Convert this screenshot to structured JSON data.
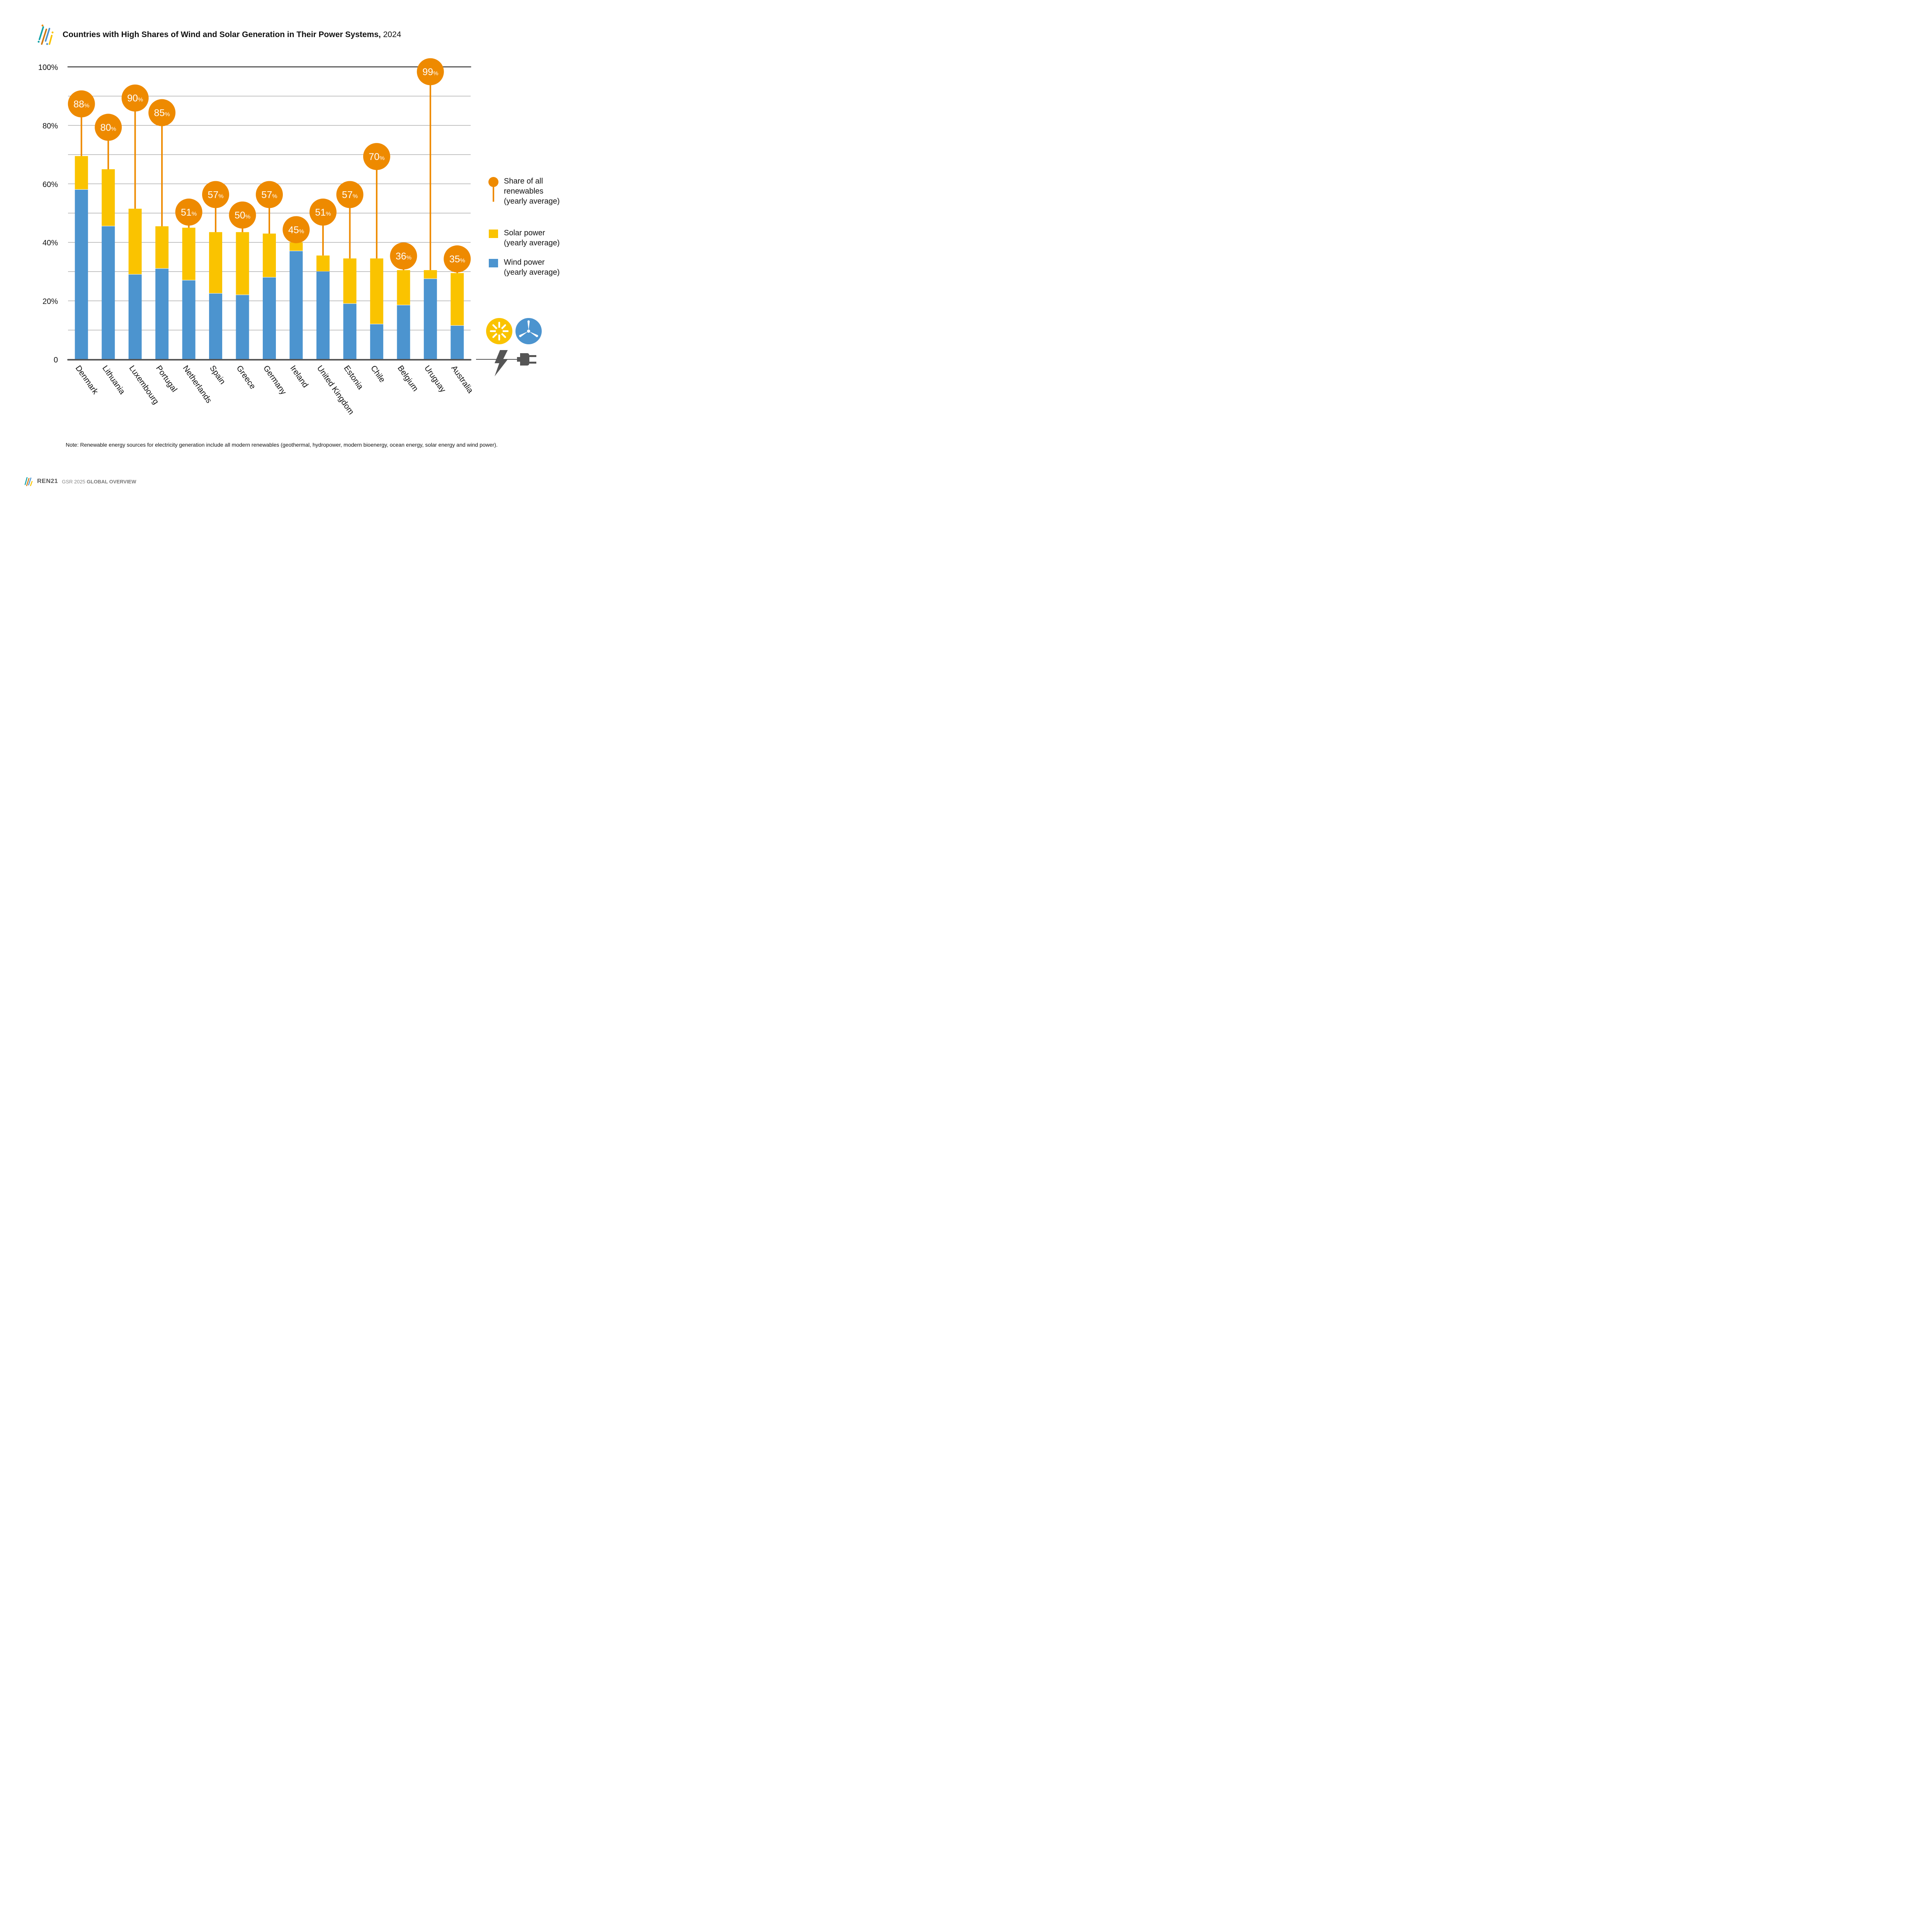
{
  "header": {
    "title": "Countries with High Shares of Wind and Solar Generation in Their Power Systems,",
    "year": "2024",
    "logo_icon": "ren21-stripes-logo-icon"
  },
  "colors": {
    "wind": "#4C94CF",
    "solar": "#FAC300",
    "renewables": "#EE8A00",
    "axis": "#555555",
    "grid": "#888888"
  },
  "chart_data": {
    "type": "bar",
    "stacked": true,
    "title": "Countries with High Shares of Wind and Solar Generation in Their Power Systems, 2024",
    "xlabel": "",
    "ylabel": "",
    "ylim": [
      0,
      100
    ],
    "yticks": [
      0,
      20,
      40,
      60,
      80,
      100
    ],
    "ytick_labels": [
      "0",
      "20%",
      "40%",
      "60%",
      "80%",
      "100%"
    ],
    "minor_gridlines": [
      10,
      30,
      50,
      70,
      90
    ],
    "grid": true,
    "categories": [
      "Denmark",
      "Lithuania",
      "Luxembourg",
      "Portugal",
      "Netherlands",
      "Spain",
      "Greece",
      "Germany",
      "Ireland",
      "United Kingdom",
      "Estonia",
      "Chile",
      "Belgium",
      "Uruguay",
      "Australia"
    ],
    "series": [
      {
        "name": "Wind power (yearly average)",
        "key": "wind",
        "values": [
          58,
          45.5,
          29,
          31,
          27,
          22.5,
          22,
          28,
          37,
          30,
          19,
          12,
          18.5,
          27.5,
          11.5
        ]
      },
      {
        "name": "Solar power (yearly average)",
        "key": "solar",
        "values": [
          11.5,
          19.5,
          22.5,
          14.5,
          18,
          21,
          21.5,
          15,
          3,
          5.5,
          15.5,
          22.5,
          12,
          3,
          18
        ]
      }
    ],
    "renewables_share": {
      "name": "Share of all renewables (yearly average)",
      "values": [
        88,
        80,
        90,
        85,
        51,
        57,
        50,
        57,
        45,
        51,
        57,
        70,
        36,
        99,
        35
      ],
      "labels": [
        "88",
        "80",
        "90",
        "85",
        "51",
        "57",
        "50",
        "57",
        "45",
        "51",
        "57",
        "70",
        "36",
        "99",
        "35"
      ],
      "suffix": "%"
    },
    "legend": {
      "placement": "right",
      "items": [
        {
          "key": "renewables",
          "label": "Share of all\nrenewables\n(yearly average)",
          "marker": "lollipop"
        },
        {
          "key": "solar",
          "label": "Solar power\n(yearly average)",
          "marker": "square"
        },
        {
          "key": "wind",
          "label": "Wind power\n(yearly average)",
          "marker": "square"
        }
      ]
    }
  },
  "decorative_icons": [
    "solar-sun-icon",
    "wind-turbine-icon",
    "lightning-bolt-icon",
    "power-plug-icon"
  ],
  "note": "Note: Renewable energy sources for electricity generation include all modern renewables (geothermal, hydropower, modern bioenergy, ocean energy, solar energy and wind power).",
  "footer": {
    "org": "REN21",
    "publication_prefix": "GSR 2025",
    "publication_section": "GLOBAL OVERVIEW"
  }
}
